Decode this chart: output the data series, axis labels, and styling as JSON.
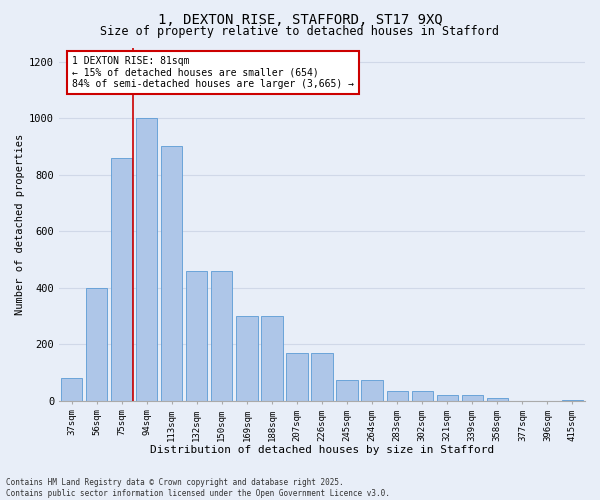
{
  "title": "1, DEXTON RISE, STAFFORD, ST17 9XQ",
  "subtitle": "Size of property relative to detached houses in Stafford",
  "xlabel": "Distribution of detached houses by size in Stafford",
  "ylabel": "Number of detached properties",
  "categories": [
    "37sqm",
    "56sqm",
    "75sqm",
    "94sqm",
    "113sqm",
    "132sqm",
    "150sqm",
    "169sqm",
    "188sqm",
    "207sqm",
    "226sqm",
    "245sqm",
    "264sqm",
    "283sqm",
    "302sqm",
    "321sqm",
    "339sqm",
    "358sqm",
    "377sqm",
    "396sqm",
    "415sqm"
  ],
  "values": [
    80,
    400,
    860,
    1000,
    900,
    460,
    460,
    300,
    300,
    170,
    170,
    75,
    75,
    35,
    35,
    20,
    20,
    10,
    0,
    0,
    5
  ],
  "bar_color": "#aec6e8",
  "bar_edge_color": "#5b9bd5",
  "property_label": "1 DEXTON RISE: 81sqm",
  "annotation_line1": "← 15% of detached houses are smaller (654)",
  "annotation_line2": "84% of semi-detached houses are larger (3,665) →",
  "annotation_box_color": "#ffffff",
  "annotation_box_edge_color": "#cc0000",
  "vline_color": "#cc0000",
  "vline_x": 2.45,
  "grid_color": "#d0d8e8",
  "bg_color": "#e8eef8",
  "footer1": "Contains HM Land Registry data © Crown copyright and database right 2025.",
  "footer2": "Contains public sector information licensed under the Open Government Licence v3.0.",
  "ylim": [
    0,
    1250
  ],
  "yticks": [
    0,
    200,
    400,
    600,
    800,
    1000,
    1200
  ]
}
